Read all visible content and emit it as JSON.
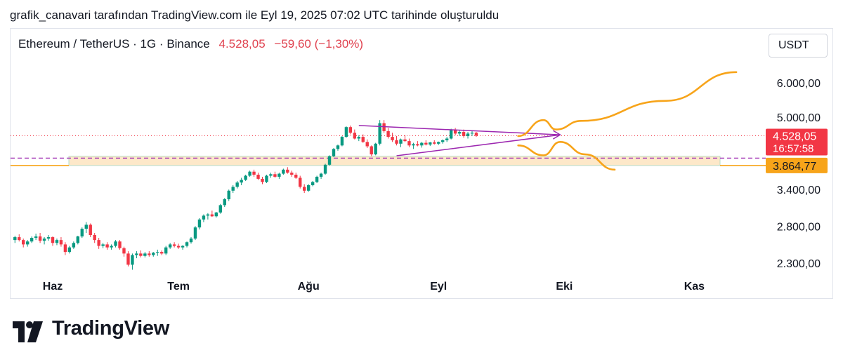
{
  "caption": "grafik_canavari tarafından TradingView.com ile Eyl 19, 2025 07:02 UTC tarihinde oluşturuldu",
  "legend": {
    "symbol": "Ethereum / TetherUS · 1G · Binance",
    "last": "4.528,05",
    "change": "−59,60 (−1,30%)"
  },
  "unit": "USDT",
  "brand": "TradingView",
  "colors": {
    "up": "#089981",
    "down": "#f23645",
    "orange": "#f7a41a",
    "purple": "#9c27b0",
    "zone": "#fde8c9"
  },
  "chart_data": {
    "type": "candlestick",
    "y_scale": "log",
    "y_ticks": [
      {
        "value": 6000,
        "label": "6.000,00"
      },
      {
        "value": 5000,
        "label": "5.000,00"
      },
      {
        "value": 3400,
        "label": "3.400,00"
      },
      {
        "value": 2800,
        "label": "2.800,00"
      },
      {
        "value": 2300,
        "label": "2.300,00"
      }
    ],
    "x_ticks": [
      {
        "date": "2025-06-01",
        "label": "Haz"
      },
      {
        "date": "2025-07-01",
        "label": "Tem"
      },
      {
        "date": "2025-08-01",
        "label": "Ağu"
      },
      {
        "date": "2025-09-01",
        "label": "Eyl"
      },
      {
        "date": "2025-10-01",
        "label": "Eki"
      },
      {
        "date": "2025-11-01",
        "label": "Kas"
      }
    ],
    "price_labels": [
      {
        "value": 4528.05,
        "text": "4.528,05",
        "subtext": "16:57:58",
        "color": "#f23645"
      },
      {
        "value": 3864.77,
        "text": "3.864,77",
        "color": "#f7a41a"
      }
    ],
    "start_date": "2025-05-23",
    "candles": [
      [
        2600,
        2660,
        2560,
        2640
      ],
      [
        2640,
        2680,
        2580,
        2600
      ],
      [
        2600,
        2620,
        2500,
        2540
      ],
      [
        2540,
        2600,
        2510,
        2580
      ],
      [
        2580,
        2650,
        2560,
        2630
      ],
      [
        2630,
        2690,
        2600,
        2650
      ],
      [
        2650,
        2700,
        2560,
        2590
      ],
      [
        2590,
        2640,
        2540,
        2620
      ],
      [
        2620,
        2670,
        2590,
        2640
      ],
      [
        2640,
        2650,
        2520,
        2560
      ],
      [
        2560,
        2620,
        2530,
        2600
      ],
      [
        2600,
        2640,
        2510,
        2540
      ],
      [
        2540,
        2570,
        2400,
        2440
      ],
      [
        2440,
        2520,
        2420,
        2500
      ],
      [
        2500,
        2580,
        2480,
        2560
      ],
      [
        2560,
        2660,
        2540,
        2650
      ],
      [
        2650,
        2780,
        2630,
        2760
      ],
      [
        2760,
        2860,
        2700,
        2820
      ],
      [
        2820,
        2840,
        2640,
        2670
      ],
      [
        2670,
        2700,
        2560,
        2600
      ],
      [
        2600,
        2630,
        2480,
        2520
      ],
      [
        2520,
        2560,
        2490,
        2540
      ],
      [
        2540,
        2570,
        2470,
        2500
      ],
      [
        2500,
        2540,
        2470,
        2520
      ],
      [
        2520,
        2600,
        2500,
        2580
      ],
      [
        2580,
        2600,
        2470,
        2490
      ],
      [
        2490,
        2510,
        2380,
        2420
      ],
      [
        2420,
        2450,
        2260,
        2280
      ],
      [
        2280,
        2420,
        2220,
        2400
      ],
      [
        2400,
        2450,
        2360,
        2420
      ],
      [
        2420,
        2460,
        2370,
        2390
      ],
      [
        2390,
        2440,
        2370,
        2420
      ],
      [
        2420,
        2450,
        2380,
        2400
      ],
      [
        2400,
        2440,
        2380,
        2430
      ],
      [
        2430,
        2470,
        2390,
        2440
      ],
      [
        2440,
        2460,
        2400,
        2420
      ],
      [
        2420,
        2520,
        2400,
        2500
      ],
      [
        2500,
        2560,
        2480,
        2540
      ],
      [
        2540,
        2570,
        2500,
        2520
      ],
      [
        2520,
        2550,
        2480,
        2500
      ],
      [
        2500,
        2530,
        2470,
        2520
      ],
      [
        2520,
        2580,
        2500,
        2570
      ],
      [
        2570,
        2640,
        2550,
        2620
      ],
      [
        2620,
        2800,
        2600,
        2780
      ],
      [
        2780,
        2920,
        2750,
        2900
      ],
      [
        2900,
        2980,
        2860,
        2960
      ],
      [
        2960,
        3000,
        2900,
        2980
      ],
      [
        2980,
        3040,
        2940,
        2950
      ],
      [
        2950,
        3020,
        2930,
        3010
      ],
      [
        3010,
        3150,
        2990,
        3130
      ],
      [
        3130,
        3250,
        3100,
        3230
      ],
      [
        3230,
        3400,
        3200,
        3380
      ],
      [
        3380,
        3480,
        3340,
        3450
      ],
      [
        3450,
        3560,
        3420,
        3530
      ],
      [
        3530,
        3620,
        3480,
        3580
      ],
      [
        3580,
        3680,
        3560,
        3660
      ],
      [
        3660,
        3760,
        3640,
        3740
      ],
      [
        3740,
        3780,
        3640,
        3680
      ],
      [
        3680,
        3720,
        3580,
        3600
      ],
      [
        3600,
        3640,
        3500,
        3540
      ],
      [
        3540,
        3680,
        3520,
        3660
      ],
      [
        3660,
        3720,
        3620,
        3690
      ],
      [
        3690,
        3740,
        3620,
        3640
      ],
      [
        3640,
        3720,
        3600,
        3700
      ],
      [
        3700,
        3800,
        3680,
        3780
      ],
      [
        3780,
        3830,
        3700,
        3720
      ],
      [
        3720,
        3760,
        3640,
        3680
      ],
      [
        3680,
        3720,
        3600,
        3620
      ],
      [
        3620,
        3660,
        3420,
        3450
      ],
      [
        3450,
        3500,
        3340,
        3380
      ],
      [
        3380,
        3500,
        3360,
        3480
      ],
      [
        3480,
        3560,
        3460,
        3540
      ],
      [
        3540,
        3660,
        3520,
        3640
      ],
      [
        3640,
        3720,
        3600,
        3700
      ],
      [
        3700,
        3900,
        3680,
        3880
      ],
      [
        3880,
        4080,
        3860,
        4060
      ],
      [
        4060,
        4240,
        4040,
        4220
      ],
      [
        4220,
        4320,
        4180,
        4300
      ],
      [
        4300,
        4520,
        4280,
        4500
      ],
      [
        4500,
        4760,
        4480,
        4740
      ],
      [
        4740,
        4780,
        4560,
        4600
      ],
      [
        4600,
        4680,
        4440,
        4460
      ],
      [
        4460,
        4540,
        4400,
        4500
      ],
      [
        4500,
        4560,
        4360,
        4380
      ],
      [
        4380,
        4440,
        4240,
        4280
      ],
      [
        4280,
        4300,
        4060,
        4100
      ],
      [
        4100,
        4360,
        4080,
        4340
      ],
      [
        4340,
        4920,
        4300,
        4840
      ],
      [
        4840,
        4920,
        4600,
        4640
      ],
      [
        4640,
        4720,
        4460,
        4500
      ],
      [
        4500,
        4600,
        4380,
        4420
      ],
      [
        4420,
        4520,
        4300,
        4340
      ],
      [
        4340,
        4460,
        4260,
        4440
      ],
      [
        4440,
        4540,
        4380,
        4400
      ],
      [
        4400,
        4460,
        4260,
        4300
      ],
      [
        4300,
        4360,
        4220,
        4330
      ],
      [
        4330,
        4400,
        4280,
        4300
      ],
      [
        4300,
        4380,
        4250,
        4360
      ],
      [
        4360,
        4420,
        4300,
        4320
      ],
      [
        4320,
        4380,
        4290,
        4370
      ],
      [
        4370,
        4420,
        4320,
        4340
      ],
      [
        4340,
        4390,
        4310,
        4380
      ],
      [
        4380,
        4440,
        4340,
        4420
      ],
      [
        4420,
        4500,
        4380,
        4460
      ],
      [
        4460,
        4700,
        4440,
        4680
      ],
      [
        4680,
        4720,
        4540,
        4580
      ],
      [
        4580,
        4660,
        4520,
        4620
      ],
      [
        4620,
        4680,
        4480,
        4520
      ],
      [
        4520,
        4620,
        4460,
        4580
      ],
      [
        4580,
        4640,
        4520,
        4600
      ],
      [
        4600,
        4620,
        4500,
        4528
      ]
    ],
    "annotations": [
      {
        "type": "horizontal-line",
        "value": 3864.77,
        "color": "#f7a41a"
      },
      {
        "type": "horizontal-dashed-line",
        "value": 4020,
        "color": "#9c27b0"
      },
      {
        "type": "zone",
        "from": 3864.77,
        "to": 4060,
        "color": "#fde8c9"
      },
      {
        "type": "triangle-upper",
        "from": {
          "date": "2025-08-13",
          "value": 4780
        },
        "to": {
          "date": "2025-09-30",
          "value": 4550
        }
      },
      {
        "type": "triangle-lower",
        "from": {
          "date": "2025-08-22",
          "value": 4070
        },
        "to": {
          "date": "2025-09-30",
          "value": 4550
        }
      },
      {
        "type": "projection-up",
        "points": [
          [
            "2025-09-20",
            4520
          ],
          [
            "2025-09-26",
            4920
          ],
          [
            "2025-09-29",
            4680
          ],
          [
            "2025-10-05",
            4900
          ],
          [
            "2025-10-25",
            5450
          ],
          [
            "2025-11-11",
            6350
          ]
        ]
      },
      {
        "type": "projection-down",
        "points": [
          [
            "2025-09-20",
            4300
          ],
          [
            "2025-09-26",
            4080
          ],
          [
            "2025-09-30",
            4380
          ],
          [
            "2025-10-06",
            4100
          ],
          [
            "2025-10-13",
            3780
          ]
        ]
      }
    ]
  }
}
